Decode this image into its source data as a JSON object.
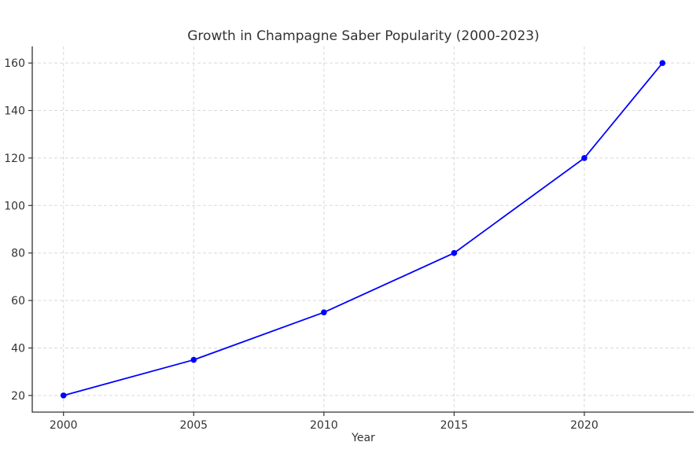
{
  "chart_data": {
    "type": "line",
    "title": "Growth in Champagne Saber Popularity (2000-2023)",
    "xlabel": "Year",
    "ylabel": "",
    "x": [
      2000,
      2005,
      2010,
      2015,
      2020,
      2023
    ],
    "series": [
      {
        "values": [
          20,
          35,
          55,
          80,
          120,
          160
        ],
        "color": "#0000ff"
      }
    ],
    "xticks": [
      2000,
      2005,
      2010,
      2015,
      2020
    ],
    "yticks": [
      20,
      40,
      60,
      80,
      100,
      120,
      140,
      160
    ],
    "xlim": [
      1998.8,
      2024.2
    ],
    "ylim": [
      13,
      167
    ],
    "grid": true,
    "marker": "circle"
  }
}
